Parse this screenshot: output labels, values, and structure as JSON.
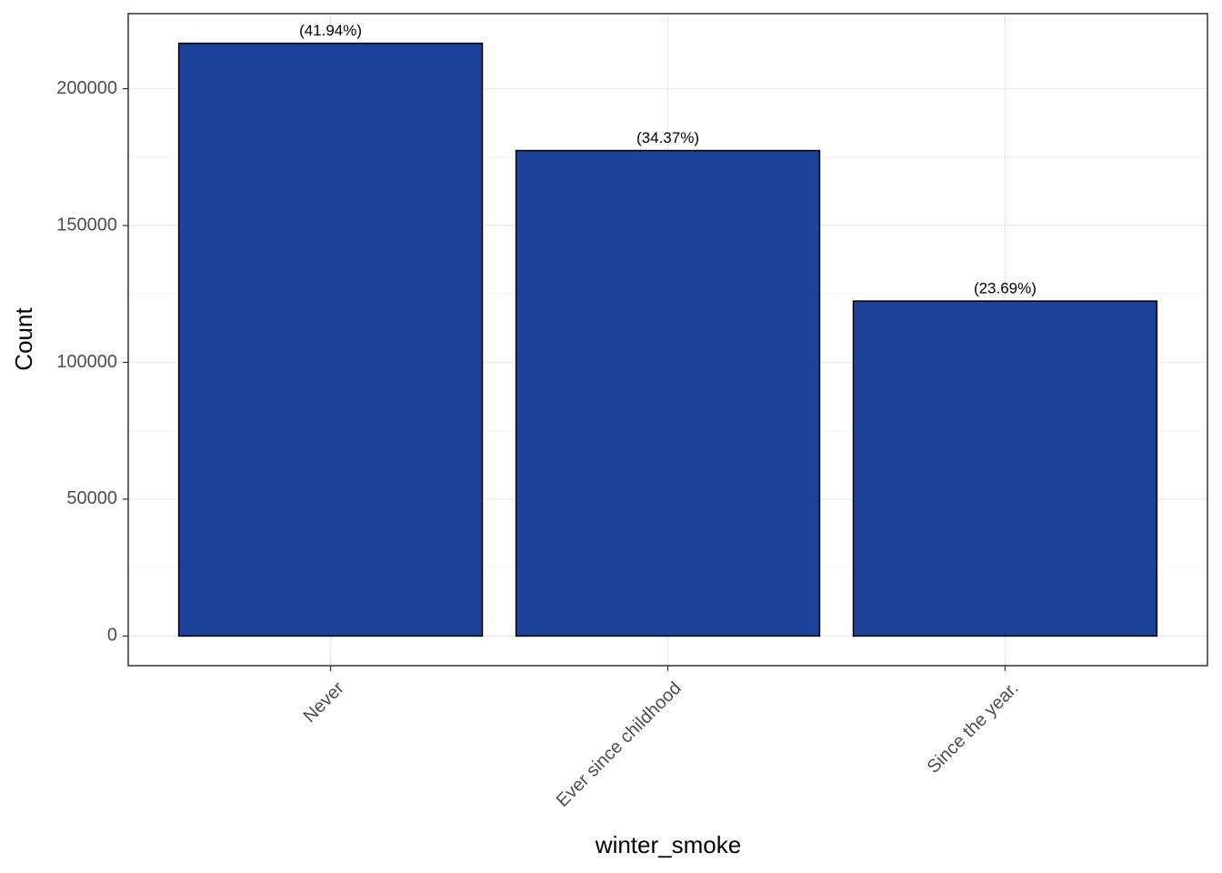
{
  "chart_data": {
    "type": "bar",
    "x_label": "winter_smoke",
    "y_label": "Count",
    "categories": [
      "Never",
      "Ever since childhood",
      "Since the year."
    ],
    "values": [
      216600,
      177400,
      122400
    ],
    "percent_labels": [
      "(41.94%)",
      "(34.37%)",
      "(23.69%)"
    ],
    "color": "#1a4399",
    "ylim": [
      -10830,
      227430
    ],
    "yticks": [
      0,
      50000,
      100000,
      150000,
      200000
    ],
    "yminor_ticks": [
      25000,
      75000,
      125000,
      175000,
      225000
    ],
    "grid": true
  }
}
